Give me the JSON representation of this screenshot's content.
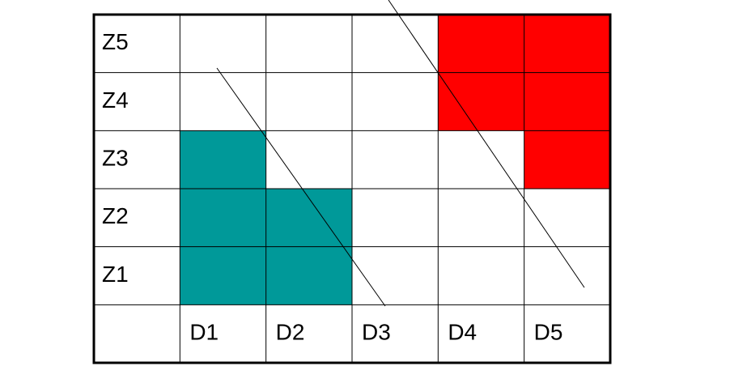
{
  "grid": {
    "columns": [
      "D1",
      "D2",
      "D3",
      "D4",
      "D5"
    ],
    "rows": [
      {
        "label": "Z5",
        "cells": [
          "#ffffff",
          "#ffffff",
          "#ffffff",
          "#ff0000",
          "#ff0000"
        ]
      },
      {
        "label": "Z4",
        "cells": [
          "#ffffff",
          "#ffffff",
          "#ffffff",
          "#ff0000",
          "#ff0000"
        ]
      },
      {
        "label": "Z3",
        "cells": [
          "#009999",
          "#ffffff",
          "#ffffff",
          "#ffffff",
          "#ff0000"
        ]
      },
      {
        "label": "Z2",
        "cells": [
          "#009999",
          "#009999",
          "#ffffff",
          "#ffffff",
          "#ffffff"
        ]
      },
      {
        "label": "Z1",
        "cells": [
          "#009999",
          "#009999",
          "#ffffff",
          "#ffffff",
          "#ffffff"
        ]
      }
    ]
  }
}
